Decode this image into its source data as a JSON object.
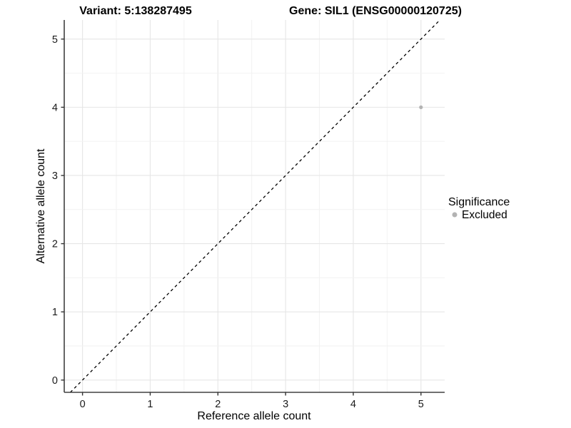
{
  "chart_data": {
    "type": "scatter",
    "title_left": "Variant: 5:138287495",
    "title_right": "Gene: SIL1 (ENSG00000120725)",
    "xlabel": "Reference allele count",
    "ylabel": "Alternative allele count",
    "xticks": [
      0,
      1,
      2,
      3,
      4,
      5
    ],
    "yticks": [
      0,
      1,
      2,
      3,
      4,
      5
    ],
    "xlim": [
      -0.27,
      5.35
    ],
    "ylim": [
      -0.18,
      5.28
    ],
    "minor_grid_step": 0.5,
    "grid": true,
    "identity_line": {
      "style": "dashed",
      "color": "#000000",
      "equation": "y = x"
    },
    "series": [
      {
        "name": "Excluded",
        "color": "#b3b3b3",
        "points": [
          {
            "x": 5,
            "y": 4
          }
        ]
      }
    ],
    "legend": {
      "position": "right",
      "title": "Significance",
      "items": [
        {
          "label": "Excluded",
          "color": "#b3b3b3"
        }
      ]
    },
    "colors": {
      "background": "#ffffff",
      "major_grid": "#e6e6e6",
      "minor_grid": "#f2f2f2",
      "axis_line": "#404040",
      "tick_mark": "#333333",
      "point": "#b3b3b3"
    }
  }
}
